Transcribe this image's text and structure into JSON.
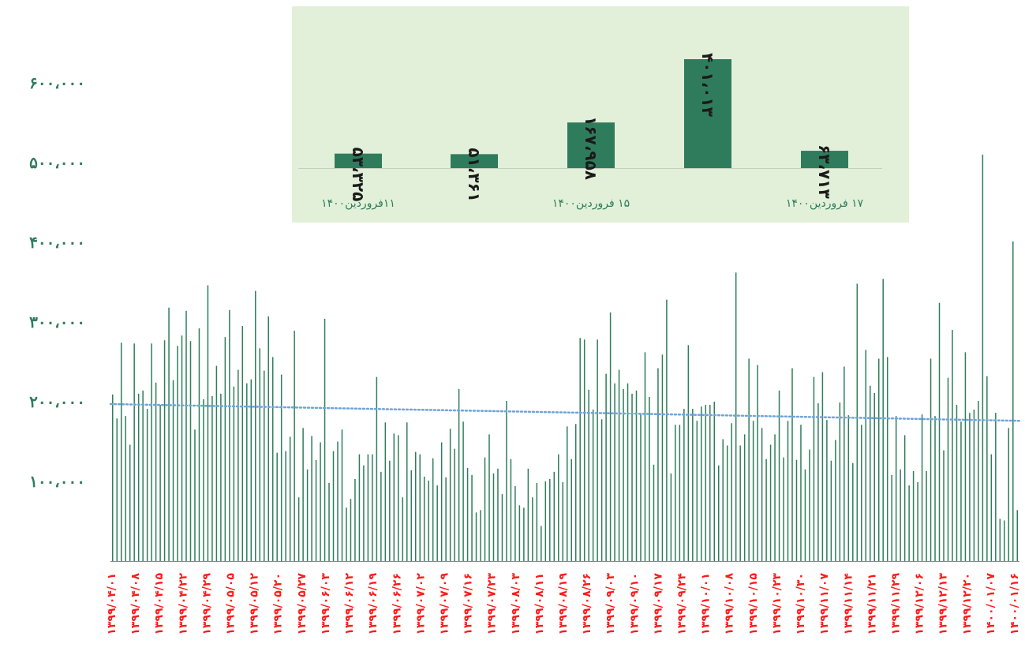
{
  "chart_data": [
    {
      "type": "bar",
      "ylim": [
        0,
        600000
      ],
      "grid": false,
      "legend": "none",
      "y_ticks": [
        "۱۰۰،۰۰۰",
        "۲۰۰،۰۰۰",
        "۳۰۰،۰۰۰",
        "۴۰۰،۰۰۰",
        "۵۰۰،۰۰۰",
        "۶۰۰،۰۰۰"
      ],
      "y_tick_values": [
        100000,
        200000,
        300000,
        400000,
        500000,
        600000
      ],
      "x_ticks": [
        "۱۳۹۹/۰۴/۰۱",
        "۱۳۹۹/۰۴/۰۸",
        "۱۳۹۹/۰۴/۱۵",
        "۱۳۹۹/۰۴/۲۲",
        "۱۳۹۹/۰۴/۲۹",
        "۱۳۹۹/۰۵/۰۵",
        "۱۳۹۹/۰۵/۱۲",
        "۱۳۹۹/۰۵/۲۰",
        "۱۳۹۹/۰۵/۲۷",
        "۱۳۹۹/۰۶/۰۳",
        "۱۳۹۹/۰۶/۱۲",
        "۱۳۹۹/۰۶/۱۹",
        "۱۳۹۹/۰۶/۲۶",
        "۱۳۹۹/۰۷/۰۲",
        "۱۳۹۹/۰۷/۰۹",
        "۱۳۹۹/۰۷/۱۶",
        "۱۳۹۹/۰۷/۲۳",
        "۱۳۹۹/۰۸/۰۳",
        "۱۳۹۹/۰۸/۱۱",
        "۱۳۹۹/۰۸/۱۹",
        "۱۳۹۹/۰۸/۲۶",
        "۱۳۹۹/۰۹/۰۳",
        "۱۳۹۹/۰۹/۱۰",
        "۱۳۹۹/۰۹/۱۷",
        "۱۳۹۹/۰۹/۲۴",
        "۱۳۹۹/۱۰/۰۱",
        "۱۳۹۹/۱۰/۰۸",
        "۱۳۹۹/۱۰/۱۵",
        "۱۳۹۹/۱۰/۲۳",
        "۱۳۹۹/۱۰/۳۰",
        "۱۳۹۹/۱۱/۰۷",
        "۱۳۹۹/۱۱/۱۴",
        "۱۳۹۹/۱۱/۲۱",
        "۱۳۹۹/۱۱/۲۹",
        "۱۳۹۹/۱۲/۰۶",
        "۱۳۹۹/۱۲/۱۳",
        "۱۳۹۹/۱۲/۲۰",
        "۱۴۰۰/۰۱/۰۷",
        "۱۴۰۰/۰۱/۱۶"
      ],
      "values": [
        209000,
        179000,
        274000,
        182000,
        146000,
        273000,
        210000,
        214000,
        191000,
        273000,
        224000,
        196000,
        277000,
        318000,
        227000,
        270000,
        283000,
        314000,
        276000,
        165000,
        292000,
        203000,
        346000,
        207000,
        245000,
        210000,
        281000,
        315000,
        219000,
        240000,
        295000,
        223000,
        228000,
        339000,
        267000,
        239000,
        307000,
        256000,
        136000,
        234000,
        138000,
        156000,
        289000,
        80000,
        167000,
        115000,
        157000,
        127000,
        149000,
        304000,
        98000,
        138000,
        150000,
        165000,
        67000,
        78000,
        103000,
        134000,
        120000,
        134000,
        134000,
        231000,
        112000,
        174000,
        126000,
        160000,
        158000,
        80000,
        174000,
        114000,
        137000,
        134000,
        106000,
        101000,
        129000,
        95000,
        149000,
        105000,
        166000,
        141000,
        216000,
        175000,
        117000,
        108000,
        61000,
        64000,
        130000,
        159000,
        110000,
        116000,
        84000,
        201000,
        128000,
        94000,
        70000,
        67000,
        116000,
        80000,
        98000,
        44000,
        100000,
        103000,
        112000,
        134000,
        99000,
        169000,
        128000,
        172000,
        280000,
        278000,
        215000,
        190000,
        278000,
        178000,
        235000,
        312000,
        223000,
        240000,
        216000,
        223000,
        210000,
        214000,
        185000,
        262000,
        206000,
        121000,
        242000,
        259000,
        328000,
        110000,
        171000,
        171000,
        191000,
        271000,
        191000,
        176000,
        194000,
        196000,
        196000,
        200000,
        120000,
        153000,
        145000,
        173000,
        362000,
        145000,
        159000,
        254000,
        176000,
        246000,
        167000,
        128000,
        146000,
        159000,
        214000,
        130000,
        176000,
        242000,
        127000,
        171000,
        115000,
        140000,
        231000,
        198000,
        237000,
        177000,
        126000,
        152000,
        199000,
        244000,
        183000,
        123000,
        348000,
        171000,
        265000,
        220000,
        211000,
        254000,
        354000,
        256000,
        108000,
        182000,
        115000,
        158000,
        95000,
        113000,
        99000,
        184000,
        113000,
        254000,
        182000,
        324000,
        139000,
        230000,
        290000,
        196000,
        175000,
        262000,
        186000,
        190000,
        201000,
        510000,
        232000,
        134000,
        186000,
        53000,
        51000,
        167000,
        401000,
        64000
      ],
      "trendline": {
        "start": 197000,
        "end": 176000,
        "style": "dotted"
      },
      "colors": {
        "bar": "#2e7d5b",
        "trend": "#6fa4d8",
        "ytick": "#2e7d5b",
        "xtick": "#ff1a1a"
      }
    },
    {
      "type": "bar",
      "values": [
        53325,
        51361,
        167958,
        401013,
        63713
      ],
      "value_labels": [
        "۵۳،۳۲۵",
        "۵۱،۳۶۱",
        "۱۶۷،۹۵۸",
        "۴۰۱،۰۱۳",
        "۶۳،۷۱۳"
      ],
      "category_labels": [
        "۱۱فروردین۱۴۰۰",
        "۱۵ فروردین۱۴۰۰",
        "۱۷ فروردین۱۴۰۰"
      ],
      "colors": {
        "bar": "#2f7c5d",
        "background": "#e2f0d9",
        "label": "#2e7d5b",
        "value": "#1a1a1a"
      }
    }
  ]
}
